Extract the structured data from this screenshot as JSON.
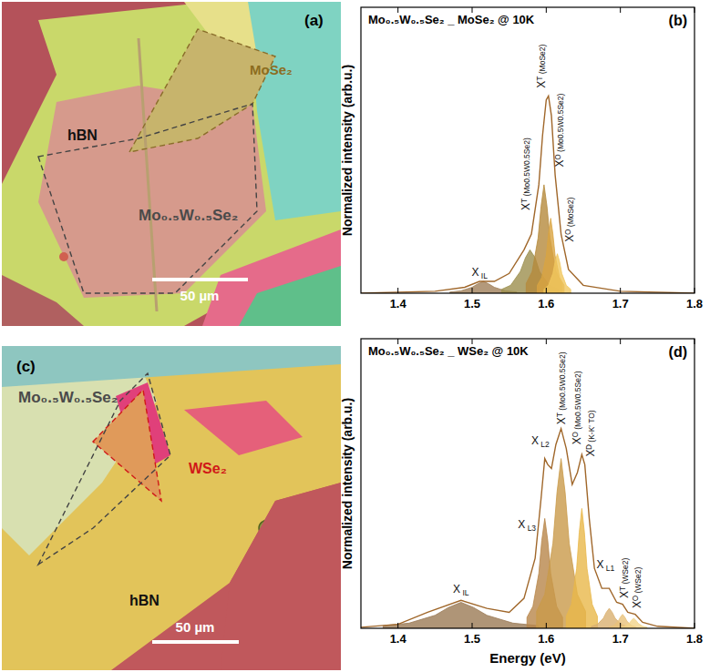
{
  "images": [
    {
      "panel": "(a)",
      "scale_bar": "50 µm",
      "labels": [
        {
          "text": "MoSe₂",
          "color": "#8c6d1f"
        },
        {
          "text": "hBN",
          "color": "#111111"
        },
        {
          "text": "Mo₀.₅W₀.₅Se₂",
          "color": "#4a4a4a"
        }
      ]
    },
    {
      "panel": "(c)",
      "scale_bar": "50 µm",
      "labels": [
        {
          "text": "Mo₀.₅W₀.₅Se₂",
          "color": "#4a4a4a"
        },
        {
          "text": "WSe₂",
          "color": "#d01818"
        },
        {
          "text": "hBN",
          "color": "#111111"
        }
      ]
    }
  ],
  "chart_data": [
    {
      "type": "line",
      "panel": "(b)",
      "title": "Mo₀.₅W₀.₅Se₂ _ MoSe₂ @ 10K",
      "y_label": "Normalized intensity (arb.u.)",
      "xlim": [
        1.35,
        1.8
      ],
      "xticks": [
        1.4,
        1.5,
        1.6,
        1.7,
        1.8
      ],
      "ylim": [
        0,
        1.45
      ],
      "tick_labels": "x",
      "series": [
        {
          "type": "area",
          "color": "#a0805a",
          "x": [
            1.47,
            1.485,
            1.5,
            1.508,
            1.515,
            1.522,
            1.53,
            1.545,
            1.56
          ],
          "values": [
            0.006,
            0.012,
            0.03,
            0.048,
            0.06,
            0.048,
            0.03,
            0.012,
            0.006
          ]
        },
        {
          "type": "area",
          "color": "#9c8f4e",
          "x": [
            1.54,
            1.552,
            1.565,
            1.572,
            1.578,
            1.585,
            1.591,
            1.604,
            1.616
          ],
          "values": [
            0.02,
            0.04,
            0.11,
            0.18,
            0.22,
            0.18,
            0.11,
            0.04,
            0.02
          ]
        },
        {
          "type": "area",
          "color": "#b58a3c",
          "x": [
            1.573,
            1.581,
            1.589,
            1.593,
            1.597,
            1.601,
            1.605,
            1.613,
            1.621
          ],
          "values": [
            0.05,
            0.11,
            0.28,
            0.44,
            0.55,
            0.44,
            0.28,
            0.11,
            0.05
          ]
        },
        {
          "type": "area",
          "color": "#d9a441",
          "x": [
            1.588,
            1.594,
            1.6,
            1.603,
            1.606,
            1.609,
            1.612,
            1.618,
            1.624
          ],
          "values": [
            0.04,
            0.08,
            0.19,
            0.3,
            0.38,
            0.3,
            0.19,
            0.08,
            0.04
          ]
        },
        {
          "type": "area",
          "color": "#f0c75e",
          "x": [
            1.597,
            1.603,
            1.609,
            1.612,
            1.615,
            1.618,
            1.621,
            1.627,
            1.633
          ],
          "values": [
            0.02,
            0.04,
            0.1,
            0.16,
            0.2,
            0.16,
            0.1,
            0.04,
            0.02
          ]
        },
        {
          "type": "line",
          "color": "#a0672a",
          "x": [
            1.35,
            1.45,
            1.49,
            1.51,
            1.53,
            1.55,
            1.57,
            1.58,
            1.59,
            1.595,
            1.6,
            1.603,
            1.607,
            1.612,
            1.62,
            1.63,
            1.65,
            1.7,
            1.8
          ],
          "values": [
            0,
            0.01,
            0.03,
            0.06,
            0.06,
            0.1,
            0.22,
            0.3,
            0.55,
            0.8,
            0.98,
            1.0,
            0.9,
            0.6,
            0.3,
            0.12,
            0.04,
            0.01,
            0
          ]
        }
      ],
      "annotations": [
        {
          "text": "X IL",
          "x": 1.51,
          "y": 0.09
        },
        {
          "text": "Xᵀ (Mo0.5W0.5Se2)",
          "x": 1.572,
          "y": 0.42
        },
        {
          "text": "Xᵀ (MoSe2)",
          "x": 1.594,
          "y": 1.04
        },
        {
          "text": "Xᴼ (Mo0.5W0.5Se2)",
          "x": 1.618,
          "y": 0.64
        },
        {
          "text": "Xᴼ (MoSe2)",
          "x": 1.632,
          "y": 0.26
        }
      ]
    },
    {
      "type": "line",
      "panel": "(d)",
      "title": "Mo₀.₅W₀.₅Se₂ _ WSe₂ @ 10K",
      "x_label": "Energy (eV)",
      "y_label": "Normalized intensity (arb.u.)",
      "xlim": [
        1.35,
        1.8
      ],
      "xticks": [
        1.4,
        1.5,
        1.6,
        1.7,
        1.8
      ],
      "ylim": [
        0,
        1.45
      ],
      "tick_labels": "x",
      "series": [
        {
          "type": "area",
          "color": "#9b7a55",
          "x": [
            1.38,
            1.415,
            1.45,
            1.468,
            1.485,
            1.502,
            1.52,
            1.555,
            1.59
          ],
          "values": [
            0.013,
            0.026,
            0.065,
            0.104,
            0.13,
            0.104,
            0.065,
            0.026,
            0.013
          ]
        },
        {
          "type": "area",
          "color": "#b8864a",
          "x": [
            1.574,
            1.582,
            1.59,
            1.594,
            1.598,
            1.602,
            1.606,
            1.614,
            1.622
          ],
          "values": [
            0.055,
            0.11,
            0.275,
            0.44,
            0.55,
            0.44,
            0.275,
            0.11,
            0.055
          ]
        },
        {
          "type": "area",
          "color": "#c99a4a",
          "x": [
            1.587,
            1.598,
            1.609,
            1.6145,
            1.62,
            1.6255,
            1.631,
            1.642,
            1.653
          ],
          "values": [
            0.085,
            0.17,
            0.425,
            0.68,
            0.85,
            0.68,
            0.425,
            0.17,
            0.085
          ]
        },
        {
          "type": "area",
          "color": "#e8b84a",
          "x": [
            1.627,
            1.634,
            1.641,
            1.6445,
            1.648,
            1.6515,
            1.655,
            1.662,
            1.669
          ],
          "values": [
            0.06,
            0.12,
            0.3,
            0.48,
            0.6,
            0.48,
            0.3,
            0.12,
            0.06
          ]
        },
        {
          "type": "area",
          "color": "#d9b070",
          "x": [
            1.661,
            1.669,
            1.677,
            1.681,
            1.685,
            1.689,
            1.693,
            1.701,
            1.709
          ],
          "values": [
            0.01,
            0.02,
            0.05,
            0.08,
            0.1,
            0.08,
            0.05,
            0.02,
            0.01
          ]
        },
        {
          "type": "area",
          "color": "#e8c27a",
          "x": [
            1.685,
            1.691,
            1.697,
            1.7,
            1.703,
            1.706,
            1.709,
            1.715,
            1.721
          ],
          "values": [
            0.007,
            0.014,
            0.035,
            0.056,
            0.07,
            0.056,
            0.035,
            0.014,
            0.007
          ]
        },
        {
          "type": "area",
          "color": "#f2d48a",
          "x": [
            1.7,
            1.706,
            1.712,
            1.715,
            1.718,
            1.721,
            1.724,
            1.73,
            1.736
          ],
          "values": [
            0.005,
            0.01,
            0.025,
            0.04,
            0.05,
            0.04,
            0.025,
            0.01,
            0.005
          ]
        },
        {
          "type": "line",
          "color": "#a0672a",
          "x": [
            1.35,
            1.4,
            1.44,
            1.485,
            1.52,
            1.55,
            1.57,
            1.585,
            1.593,
            1.598,
            1.602,
            1.607,
            1.613,
            1.62,
            1.627,
            1.635,
            1.642,
            1.648,
            1.652,
            1.658,
            1.665,
            1.675,
            1.685,
            1.695,
            1.703,
            1.71,
            1.72,
            1.73,
            1.75,
            1.8
          ],
          "values": [
            0.005,
            0.02,
            0.08,
            0.14,
            0.1,
            0.08,
            0.15,
            0.35,
            0.65,
            0.85,
            0.82,
            0.8,
            0.92,
            1.0,
            0.9,
            0.72,
            0.78,
            0.87,
            0.82,
            0.55,
            0.3,
            0.2,
            0.2,
            0.13,
            0.12,
            0.08,
            0.07,
            0.03,
            0.01,
            0
          ]
        }
      ],
      "annotations": [
        {
          "text": "X IL",
          "x": 1.485,
          "y": 0.18
        },
        {
          "text": "X L3",
          "x": 1.574,
          "y": 0.5
        },
        {
          "text": "X L2",
          "x": 1.592,
          "y": 0.92
        },
        {
          "text": "Xᵀ (Mo0.5W0.5Se2)",
          "x": 1.62,
          "y": 1.02
        },
        {
          "text": "Xᴼ (Mo0.5W0.5Se2)",
          "x": 1.641,
          "y": 0.92
        },
        {
          "text": "Xᴰ (K-K' TO)",
          "x": 1.66,
          "y": 0.86
        },
        {
          "text": "X L1",
          "x": 1.68,
          "y": 0.3
        },
        {
          "text": "Xᵀ (WSe2)",
          "x": 1.705,
          "y": 0.15
        },
        {
          "text": "Xᴼ (WSe2)",
          "x": 1.722,
          "y": 0.1
        }
      ]
    }
  ]
}
